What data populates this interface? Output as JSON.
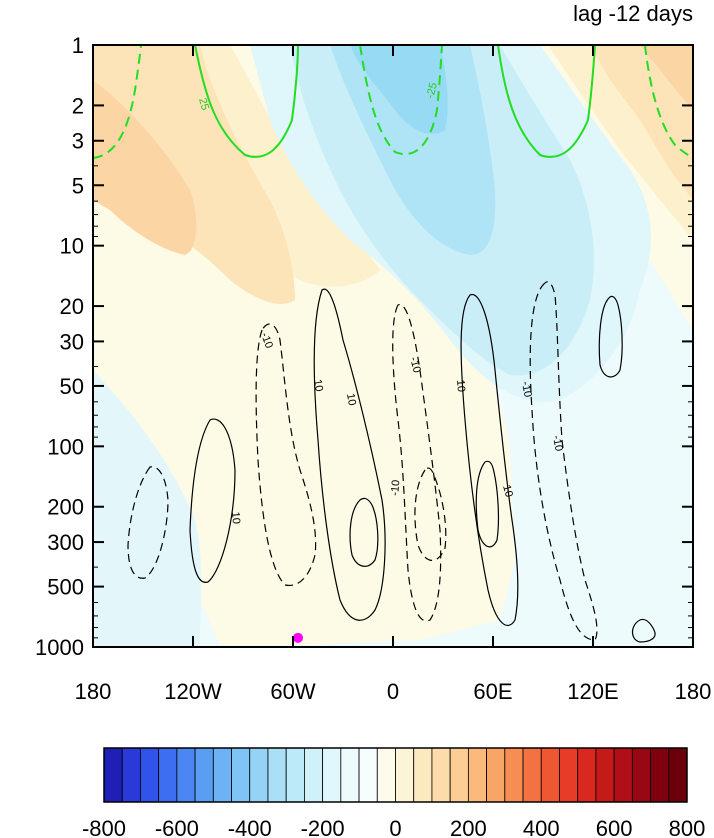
{
  "chart_data": {
    "type": "heatmap",
    "title": "lag -12 days",
    "x_axis": {
      "range": [
        -180,
        180
      ],
      "ticks": [
        {
          "value": -180,
          "label": "180"
        },
        {
          "value": -120,
          "label": "120W"
        },
        {
          "value": -60,
          "label": "60W"
        },
        {
          "value": 0,
          "label": "0"
        },
        {
          "value": 60,
          "label": "60E"
        },
        {
          "value": 120,
          "label": "120E"
        },
        {
          "value": 180,
          "label": "180"
        }
      ]
    },
    "y_axis": {
      "scale": "log",
      "inverted": true,
      "range": [
        1,
        1000
      ],
      "ticks": [
        1,
        2,
        3,
        5,
        10,
        20,
        30,
        50,
        100,
        200,
        300,
        500,
        1000
      ]
    },
    "colorbar": {
      "levels": [
        -800,
        -750,
        -700,
        -650,
        -600,
        -550,
        -500,
        -450,
        -400,
        -350,
        -300,
        -250,
        -200,
        -150,
        -100,
        -50,
        0,
        50,
        100,
        150,
        200,
        250,
        300,
        350,
        400,
        450,
        500,
        550,
        600,
        650,
        700,
        750,
        800
      ],
      "labels": [
        -800,
        -600,
        -400,
        -200,
        0,
        200,
        400,
        600,
        800
      ],
      "colors": [
        "#1f1fb8",
        "#2a39d8",
        "#3153ea",
        "#3d6df0",
        "#4b86f2",
        "#5a9ef4",
        "#6cb2f4",
        "#80c4f5",
        "#95d3f6",
        "#aae0f7",
        "#bdeaf8",
        "#cff1f9",
        "#e0f7fb",
        "#eefbfc",
        "#f5fdfd",
        "#fdfbec",
        "#fdf3d6",
        "#fde9c0",
        "#fcdcaa",
        "#fccd94",
        "#fbba7c",
        "#f9a566",
        "#f78d52",
        "#f47241",
        "#ef5632",
        "#e63c28",
        "#d8281f",
        "#c51a1a",
        "#b00f18",
        "#980814",
        "#800010",
        "#6b000c"
      ]
    },
    "filled_anomaly_pattern": {
      "description_levels": {
        "positive": [
          50,
          100,
          150,
          200
        ],
        "negative": [
          -50,
          -100,
          -150,
          -200
        ]
      }
    },
    "green_contours": [
      {
        "value": 25,
        "style": "solid"
      },
      {
        "value": -25,
        "style": "dashed"
      }
    ],
    "black_contours": [
      {
        "value": 10,
        "style": "solid"
      },
      {
        "value": -10,
        "style": "dashed"
      }
    ],
    "marker": {
      "lon": -57,
      "level": 900,
      "color": "#ff00ff"
    }
  },
  "icons": {
    "marker": "magenta-dot-icon"
  }
}
